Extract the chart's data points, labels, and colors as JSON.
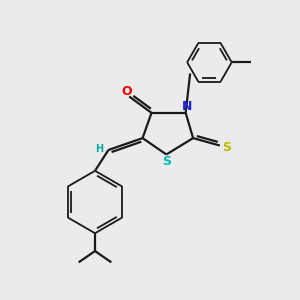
{
  "background_color": "#ebebeb",
  "bond_color": "#1a1a1a",
  "atom_colors": {
    "O": "#ee0000",
    "N": "#2020ee",
    "S_thioxo": "#bbbb00",
    "S_ring": "#00bbbb",
    "H": "#00aaaa",
    "C": "#1a1a1a"
  },
  "figsize": [
    3.0,
    3.0
  ],
  "dpi": 100
}
